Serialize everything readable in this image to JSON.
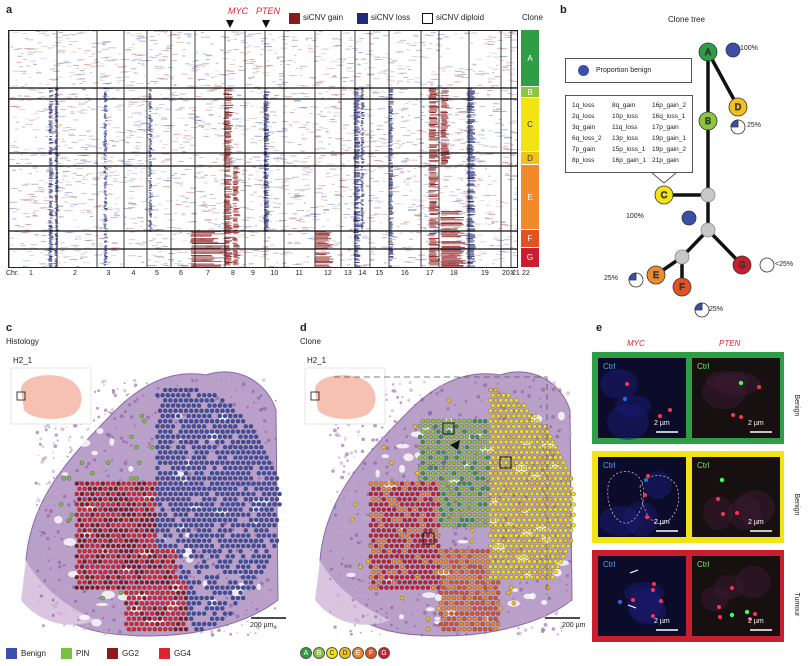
{
  "panels": {
    "a": {
      "label": "a",
      "genes": [
        "MYC",
        "PTEN"
      ],
      "legend": [
        {
          "label": "siCNV gain",
          "color": "#8b1a1a"
        },
        {
          "label": "siCNV loss",
          "color": "#1f2a78"
        },
        {
          "label": "siCNV diploid",
          "color": "#ffffff"
        }
      ],
      "clone_title": "Clone",
      "clones": [
        {
          "label": "A",
          "color": "#2e9e46"
        },
        {
          "label": "B",
          "color": "#8cc63f"
        },
        {
          "label": "C",
          "color": "#f2e314"
        },
        {
          "label": "D",
          "color": "#f3c21a"
        },
        {
          "label": "E",
          "color": "#f08a2a"
        },
        {
          "label": "F",
          "color": "#e2531f"
        },
        {
          "label": "G",
          "color": "#c81e2e"
        }
      ],
      "chr_prefix": "Chr.",
      "chromosomes": [
        "1",
        "2",
        "3",
        "4",
        "5",
        "6",
        "7",
        "8",
        "9",
        "10",
        "11",
        "12",
        "13",
        "14",
        "15",
        "16",
        "17",
        "18",
        "19",
        "20",
        "21",
        "22",
        "X"
      ]
    },
    "b": {
      "label": "b",
      "title": "Clone tree",
      "legend_label": "Proportion benign",
      "events": [
        [
          "1q_loss",
          "8q_gain",
          "16p_gain_2"
        ],
        [
          "2q_loss",
          "10p_loss",
          "16q_loss_1"
        ],
        [
          "3q_gain",
          "11q_loss",
          "17p_gain"
        ],
        [
          "6q_loss_2",
          "13p_loss",
          "19p_gain_1"
        ],
        [
          "7p_gain",
          "15p_loss_1",
          "19p_gain_2"
        ],
        [
          "8p_loss",
          "16p_gain_1",
          "21p_gain"
        ]
      ],
      "pct": {
        "A": "100%",
        "D": "25%",
        "C": "100%",
        "E": "25%",
        "F": "25%",
        "G": "<25%"
      }
    },
    "c": {
      "label": "c",
      "title": "Histology",
      "sample": "H2_1",
      "scale": "200 µm",
      "legend": [
        {
          "label": "Benign",
          "color": "#3b4fa8"
        },
        {
          "label": "PIN",
          "color": "#7ac143"
        },
        {
          "label": "GG2",
          "color": "#8b1a1a"
        },
        {
          "label": "GG4",
          "color": "#e0242f"
        }
      ]
    },
    "d": {
      "label": "d",
      "title": "Clone",
      "sample": "H2_1",
      "scale": "200 µm",
      "clone_legend": [
        "A",
        "B",
        "C",
        "D",
        "E",
        "F",
        "G"
      ]
    },
    "e": {
      "label": "e",
      "genes": [
        "MYC",
        "PTEN"
      ],
      "ctrl": "Ctrl",
      "scale": "2 µm",
      "rows": [
        "Benign",
        "Benign",
        "Tumour"
      ]
    }
  }
}
